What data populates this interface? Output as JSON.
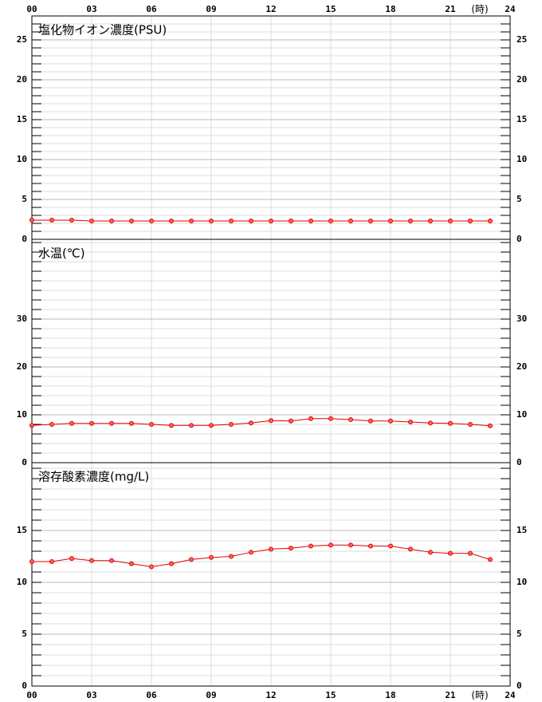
{
  "chart_data": [
    {
      "type": "line",
      "title": "塩化物イオン濃度(PSU)",
      "x": [
        0,
        1,
        2,
        3,
        4,
        5,
        6,
        7,
        8,
        9,
        10,
        11,
        12,
        13,
        14,
        15,
        16,
        17,
        18,
        19,
        20,
        21,
        22,
        23
      ],
      "xlim": [
        0,
        24
      ],
      "xticks": [
        {
          "value": 0,
          "label": "00"
        },
        {
          "value": 3,
          "label": "03"
        },
        {
          "value": 6,
          "label": "06"
        },
        {
          "value": 9,
          "label": "09"
        },
        12,
        15,
        18,
        21,
        24
      ],
      "x_unit_label": "(時)",
      "ylim": [
        0,
        28
      ],
      "yticks": [
        0,
        5,
        10,
        15,
        20,
        25
      ],
      "minor_grid": 1,
      "grid": true,
      "series": [
        {
          "color": "#e00000",
          "values": [
            2.4,
            2.4,
            2.4,
            2.3,
            2.3,
            2.3,
            2.3,
            2.3,
            2.3,
            2.3,
            2.3,
            2.3,
            2.3,
            2.3,
            2.3,
            2.3,
            2.3,
            2.3,
            2.3,
            2.3,
            2.3,
            2.3,
            2.3,
            2.3
          ]
        }
      ]
    },
    {
      "type": "line",
      "title": "水温(℃)",
      "x": [
        0,
        1,
        2,
        3,
        4,
        5,
        6,
        7,
        8,
        9,
        10,
        11,
        12,
        13,
        14,
        15,
        16,
        17,
        18,
        19,
        20,
        21,
        22,
        23
      ],
      "xlim": [
        0,
        24
      ],
      "ylim": [
        0,
        46.67
      ],
      "yticks": [
        0,
        10,
        20,
        30
      ],
      "minor_grid": 2,
      "grid": true,
      "series": [
        {
          "color": "#e00000",
          "values": [
            7.8,
            8.0,
            8.2,
            8.2,
            8.2,
            8.2,
            8.0,
            7.8,
            7.8,
            7.8,
            8.0,
            8.3,
            8.8,
            8.7,
            9.2,
            9.2,
            9.0,
            8.7,
            8.7,
            8.5,
            8.3,
            8.2,
            8.0,
            7.7
          ]
        }
      ]
    },
    {
      "type": "line",
      "title": "溶存酸素濃度(mg/L)",
      "x": [
        0,
        1,
        2,
        3,
        4,
        5,
        6,
        7,
        8,
        9,
        10,
        11,
        12,
        13,
        14,
        15,
        16,
        17,
        18,
        19,
        20,
        21,
        22,
        23
      ],
      "xlim": [
        0,
        24
      ],
      "xticks": [
        {
          "value": 0,
          "label": "00"
        },
        {
          "value": 3,
          "label": "03"
        },
        {
          "value": 6,
          "label": "06"
        },
        {
          "value": 9,
          "label": "09"
        },
        12,
        15,
        18,
        21,
        24
      ],
      "x_unit_label": "(時)",
      "ylim": [
        0,
        21.54
      ],
      "yticks": [
        0,
        5,
        10,
        15
      ],
      "minor_grid": 1,
      "grid": true,
      "series": [
        {
          "color": "#e00000",
          "values": [
            12.0,
            12.0,
            12.3,
            12.1,
            12.1,
            11.8,
            11.5,
            11.8,
            12.2,
            12.4,
            12.5,
            12.9,
            13.2,
            13.3,
            13.5,
            13.6,
            13.6,
            13.5,
            13.5,
            13.2,
            12.9,
            12.8,
            12.8,
            12.2
          ]
        }
      ]
    }
  ]
}
